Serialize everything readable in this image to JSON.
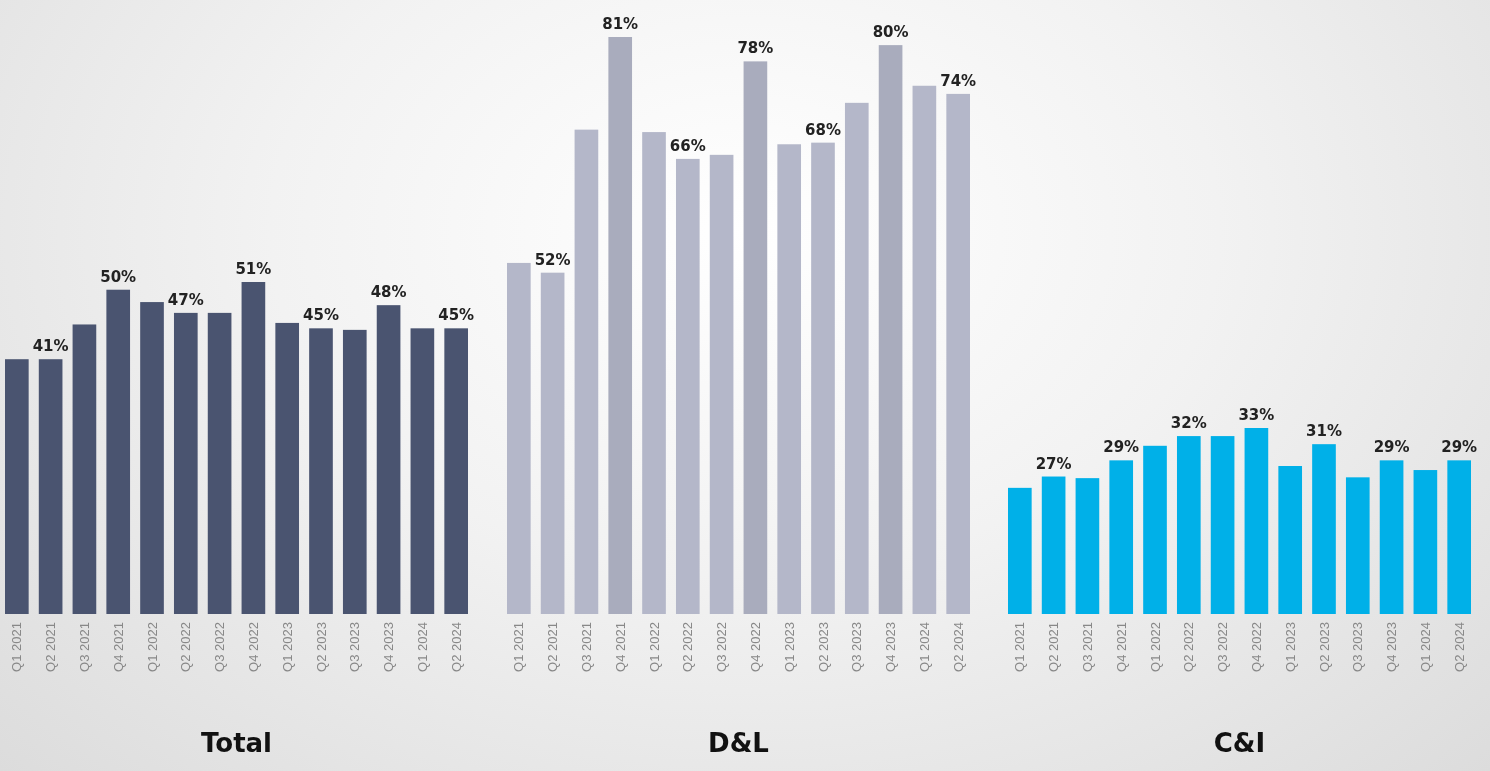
{
  "chart_data": [
    {
      "type": "bar",
      "title": "Total",
      "categories": [
        "Q1 2021",
        "Q2 2021",
        "Q3 2021",
        "Q4 2021",
        "Q1 2022",
        "Q2 2022",
        "Q3 2022",
        "Q4 2022",
        "Q1 2023",
        "Q2 2023",
        "Q3 2023",
        "Q4 2023",
        "Q1 2024",
        "Q2 2024"
      ],
      "values": [
        41,
        41,
        45.5,
        50,
        48.4,
        47,
        47,
        51,
        45.7,
        45,
        44.8,
        48,
        45,
        45
      ],
      "value_labels": [
        null,
        "41%",
        null,
        "50%",
        null,
        "47%",
        null,
        "51%",
        null,
        "45%",
        null,
        "48%",
        null,
        "45%"
      ],
      "color": "#4a5470",
      "ylim": [
        8,
        51
      ],
      "tick_labels": "x"
    },
    {
      "type": "bar",
      "title": "D&L",
      "categories": [
        "Q1 2021",
        "Q2 2021",
        "Q3 2021",
        "Q4 2021",
        "Q1 2022",
        "Q2 2022",
        "Q3 2022",
        "Q4 2022",
        "Q1 2023",
        "Q2 2023",
        "Q3 2023",
        "Q4 2023",
        "Q1 2024",
        "Q2 2024"
      ],
      "values": [
        53.2,
        52,
        69.6,
        81,
        69.3,
        66,
        66.5,
        78,
        67.8,
        68,
        72.9,
        80,
        75,
        74
      ],
      "value_labels": [
        null,
        "52%",
        null,
        "81%",
        null,
        "66%",
        null,
        "78%",
        null,
        "68%",
        null,
        "80%",
        null,
        "74%"
      ],
      "colors": [
        "#b4b7c9",
        "#b4b7c9",
        "#b4b7c9",
        "#a9acbd",
        "#b4b7c9",
        "#b4b7c9",
        "#b4b7c9",
        "#a9acbd",
        "#b4b7c9",
        "#b4b7c9",
        "#b4b7c9",
        "#a9acbd",
        "#b4b7c9",
        "#b4b7c9"
      ],
      "ylim": [
        10,
        81
      ],
      "tick_labels": "x"
    },
    {
      "type": "bar",
      "title": "C&I",
      "categories": [
        "Q1 2021",
        "Q2 2021",
        "Q3 2021",
        "Q4 2021",
        "Q1 2022",
        "Q2 2022",
        "Q3 2022",
        "Q4 2022",
        "Q1 2023",
        "Q2 2023",
        "Q3 2023",
        "Q4 2023",
        "Q1 2024",
        "Q2 2024"
      ],
      "values": [
        25.6,
        27,
        26.8,
        29,
        30.8,
        32,
        32,
        33,
        28.3,
        31,
        26.9,
        29,
        27.8,
        29
      ],
      "value_labels": [
        null,
        "27%",
        null,
        "29%",
        null,
        "32%",
        null,
        "33%",
        null,
        "31%",
        null,
        "29%",
        null,
        "29%"
      ],
      "color": "#00b0e8",
      "ylim": [
        10,
        33
      ],
      "tick_labels": "x"
    }
  ]
}
